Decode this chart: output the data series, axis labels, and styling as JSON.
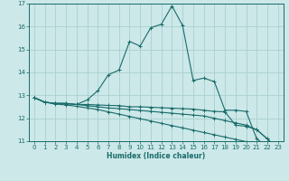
{
  "xlabel": "Humidex (Indice chaleur)",
  "ylabel": "",
  "background_color": "#cce8e8",
  "grid_color": "#aad0d0",
  "line_color": "#1a6b6b",
  "xlim": [
    -0.5,
    23.5
  ],
  "ylim": [
    11,
    17
  ],
  "yticks": [
    11,
    12,
    13,
    14,
    15,
    16,
    17
  ],
  "xticks": [
    0,
    1,
    2,
    3,
    4,
    5,
    6,
    7,
    8,
    9,
    10,
    11,
    12,
    13,
    14,
    15,
    16,
    17,
    18,
    19,
    20,
    21,
    22,
    23
  ],
  "series": [
    {
      "x": [
        0,
        1,
        2,
        3,
        4,
        5,
        6,
        7,
        8,
        9,
        10,
        11,
        12,
        13,
        14,
        15,
        16,
        17,
        18,
        19,
        20,
        21,
        22,
        23
      ],
      "y": [
        12.9,
        12.7,
        12.65,
        12.65,
        12.6,
        12.8,
        13.2,
        13.9,
        14.1,
        15.35,
        15.15,
        15.95,
        16.1,
        16.9,
        16.05,
        13.65,
        13.75,
        13.6,
        12.35,
        12.35,
        12.3,
        11.1,
        10.75,
        10.65
      ]
    },
    {
      "x": [
        0,
        1,
        2,
        3,
        4,
        5,
        6,
        7,
        8,
        9,
        10,
        11,
        12,
        13,
        14,
        15,
        16,
        17,
        18,
        19,
        20,
        21,
        22,
        23
      ],
      "y": [
        12.9,
        12.7,
        12.65,
        12.65,
        12.6,
        12.6,
        12.58,
        12.56,
        12.55,
        12.5,
        12.5,
        12.48,
        12.46,
        12.44,
        12.42,
        12.4,
        12.35,
        12.3,
        12.28,
        11.7,
        11.65,
        11.5,
        11.1,
        10.65
      ]
    },
    {
      "x": [
        0,
        1,
        2,
        3,
        4,
        5,
        6,
        7,
        8,
        9,
        10,
        11,
        12,
        13,
        14,
        15,
        16,
        17,
        18,
        19,
        20,
        21,
        22,
        23
      ],
      "y": [
        12.9,
        12.7,
        12.65,
        12.63,
        12.6,
        12.55,
        12.5,
        12.45,
        12.42,
        12.38,
        12.34,
        12.3,
        12.26,
        12.22,
        12.18,
        12.14,
        12.1,
        12.0,
        11.9,
        11.8,
        11.7,
        11.5,
        11.1,
        10.65
      ]
    },
    {
      "x": [
        0,
        1,
        2,
        3,
        4,
        5,
        6,
        7,
        8,
        9,
        10,
        11,
        12,
        13,
        14,
        15,
        16,
        17,
        18,
        19,
        20,
        21,
        22,
        23
      ],
      "y": [
        12.9,
        12.7,
        12.62,
        12.58,
        12.52,
        12.45,
        12.38,
        12.28,
        12.18,
        12.08,
        11.98,
        11.88,
        11.78,
        11.68,
        11.58,
        11.48,
        11.38,
        11.28,
        11.18,
        11.08,
        10.98,
        10.88,
        10.75,
        10.65
      ]
    }
  ]
}
